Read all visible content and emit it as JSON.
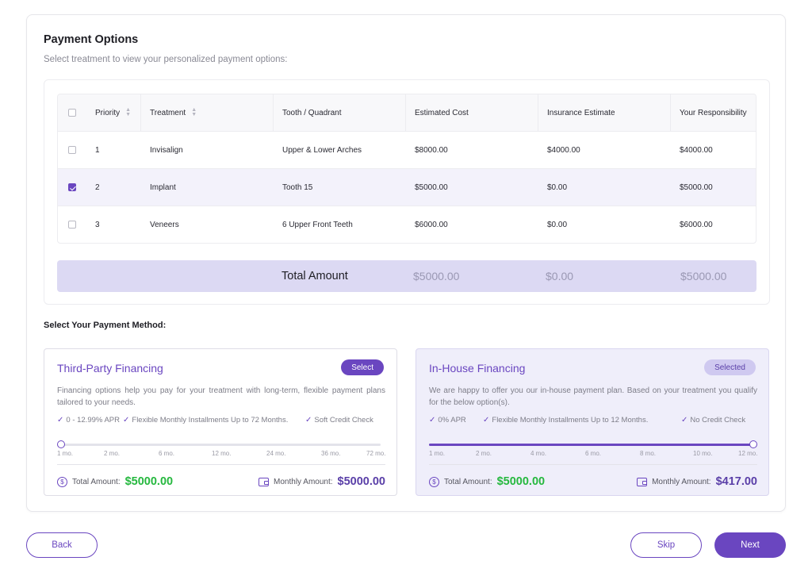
{
  "header": {
    "title": "Payment Options",
    "subtitle": "Select treatment to view your personalized payment options:"
  },
  "table": {
    "columns": [
      "Priority",
      "Treatment",
      "Tooth / Quadrant",
      "Estimated Cost",
      "Insurance Estimate",
      "Your Responsibility"
    ],
    "rows": [
      {
        "checked": false,
        "priority": "1",
        "treatment": "Invisalign",
        "tooth": "Upper & Lower Arches",
        "cost": "$8000.00",
        "insurance": "$4000.00",
        "responsibility": "$4000.00"
      },
      {
        "checked": true,
        "priority": "2",
        "treatment": "Implant",
        "tooth": "Tooth 15",
        "cost": "$5000.00",
        "insurance": "$0.00",
        "responsibility": "$5000.00"
      },
      {
        "checked": false,
        "priority": "3",
        "treatment": "Veneers",
        "tooth": "6 Upper Front Teeth",
        "cost": "$6000.00",
        "insurance": "$0.00",
        "responsibility": "$6000.00"
      }
    ],
    "total": {
      "label": "Total Amount",
      "cost": "$5000.00",
      "insurance": "$0.00",
      "responsibility": "$5000.00"
    }
  },
  "payment_method": {
    "label": "Select Your Payment Method:",
    "cards": [
      {
        "title": "Third-Party Financing",
        "button": "Select",
        "selected": false,
        "description": "Financing options help you pay for your treatment with long-term, flexible payment plans tailored to your needs.",
        "features": [
          "0 - 12.99% APR",
          "Flexible Monthly Installments Up to 72 Months.",
          "Soft Credit Check"
        ],
        "ticks": [
          "1 mo.",
          "2 mo.",
          "6 mo.",
          "12 mo.",
          "24 mo.",
          "36 mo.",
          "72 mo."
        ],
        "slider_fraction": 0,
        "total_label": "Total Amount:",
        "total_value": "$5000.00",
        "monthly_label": "Monthly Amount:",
        "monthly_value": "$5000.00"
      },
      {
        "title": "In-House Financing",
        "button": "Selected",
        "selected": true,
        "description": "We are happy to offer you our in-house payment plan. Based on your treatment you qualify for the below option(s).",
        "features": [
          "0% APR",
          "Flexible Monthly Installments Up to 12 Months.",
          "No Credit Check"
        ],
        "ticks": [
          "1 mo.",
          "2 mo.",
          "4 mo.",
          "6 mo.",
          "8 mo.",
          "10 mo.",
          "12 mo."
        ],
        "slider_fraction": 1,
        "total_label": "Total Amount:",
        "total_value": "$5000.00",
        "monthly_label": "Monthly Amount:",
        "monthly_value": "$417.00"
      }
    ]
  },
  "footer": {
    "back": "Back",
    "skip": "Skip",
    "next": "Next"
  },
  "colors": {
    "accent": "#6a46c0",
    "green": "#26b83f"
  }
}
